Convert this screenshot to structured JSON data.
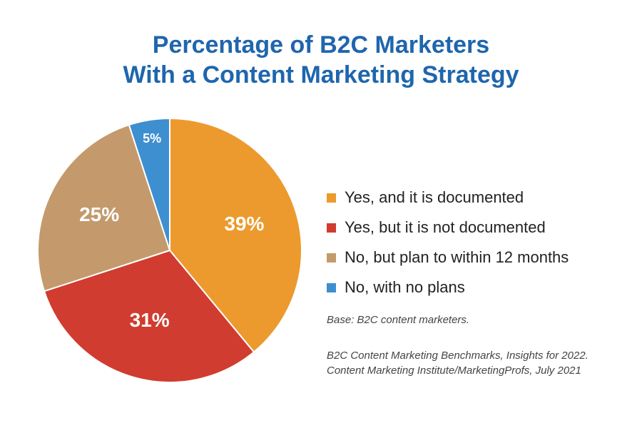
{
  "chart_data": {
    "type": "pie",
    "title": [
      "Percentage of B2C Marketers",
      "With a Content Marketing Strategy"
    ],
    "slices": [
      {
        "label": "Yes, and it is documented",
        "value": 39,
        "display": "39%",
        "color": "#ec9a2d"
      },
      {
        "label": "Yes, but it is not documented",
        "value": 31,
        "display": "31%",
        "color": "#d03c2f"
      },
      {
        "label": "No, but plan to within 12 months",
        "value": 25,
        "display": "25%",
        "color": "#c49a6c"
      },
      {
        "label": "No, with no plans",
        "value": 5,
        "display": "5%",
        "color": "#3d8fd0"
      }
    ],
    "legend_position": "right",
    "note": "Base: B2C content marketers.",
    "source": [
      "B2C Content Marketing Benchmarks, Insights for 2022.",
      "Content Marketing Institute/MarketingProfs, July 2021"
    ]
  }
}
